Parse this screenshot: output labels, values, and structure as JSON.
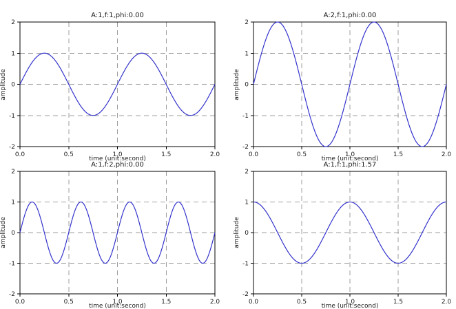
{
  "figure": {
    "background": "#ffffff",
    "line_color": "#3333cc",
    "grid_color": "#9e9e9e",
    "axis_color": "#000000",
    "text_color": "#1a1a1a"
  },
  "chart_data": [
    {
      "type": "line",
      "title": "A:1,f:1,phi:0.00",
      "xlabel": "time (unit:second)",
      "ylabel": "amplitude",
      "xlim": [
        0,
        2
      ],
      "ylim": [
        -2,
        2
      ],
      "xticks": [
        0.0,
        0.5,
        1.0,
        1.5,
        2.0
      ],
      "xtick_labels": [
        "0.0",
        "0.5",
        "1.0",
        "1.5",
        "2.0"
      ],
      "yticks": [
        -2,
        -1,
        0,
        1,
        2
      ],
      "ytick_labels": [
        "-2",
        "-1",
        "0",
        "1",
        "2"
      ],
      "grid": true,
      "legend": "none",
      "series": [
        {
          "name": "sine-wave",
          "waveform": "sine",
          "amplitude": 1,
          "frequency_hz": 1,
          "phase_rad": 0.0
        }
      ]
    },
    {
      "type": "line",
      "title": "A:2,f:1,phi:0.00",
      "xlabel": "time (unit:second)",
      "ylabel": "amplitude",
      "xlim": [
        0,
        2
      ],
      "ylim": [
        -2,
        2
      ],
      "xticks": [
        0.0,
        0.5,
        1.0,
        1.5,
        2.0
      ],
      "xtick_labels": [
        "0.0",
        "0.5",
        "1.0",
        "1.5",
        "2.0"
      ],
      "yticks": [
        -2,
        -1,
        0,
        1,
        2
      ],
      "ytick_labels": [
        "-2",
        "-1",
        "0",
        "1",
        "2"
      ],
      "grid": true,
      "legend": "none",
      "series": [
        {
          "name": "sine-wave",
          "waveform": "sine",
          "amplitude": 2,
          "frequency_hz": 1,
          "phase_rad": 0.0
        }
      ]
    },
    {
      "type": "line",
      "title": "A:1,f:2,phi:0.00",
      "xlabel": "time (unit:second)",
      "ylabel": "amplitude",
      "xlim": [
        0,
        2
      ],
      "ylim": [
        -2,
        2
      ],
      "xticks": [
        0.0,
        0.5,
        1.0,
        1.5,
        2.0
      ],
      "xtick_labels": [
        "0.0",
        "0.5",
        "1.0",
        "1.5",
        "2.0"
      ],
      "yticks": [
        -2,
        -1,
        0,
        1,
        2
      ],
      "ytick_labels": [
        "-2",
        "-1",
        "0",
        "1",
        "2"
      ],
      "grid": true,
      "legend": "none",
      "series": [
        {
          "name": "sine-wave",
          "waveform": "sine",
          "amplitude": 1,
          "frequency_hz": 2,
          "phase_rad": 0.0
        }
      ]
    },
    {
      "type": "line",
      "title": "A:1,f:1,phi:1.57",
      "xlabel": "time (unit:second)",
      "ylabel": "amplitude",
      "xlim": [
        0,
        2
      ],
      "ylim": [
        -2,
        2
      ],
      "xticks": [
        0.0,
        0.5,
        1.0,
        1.5,
        2.0
      ],
      "xtick_labels": [
        "0.0",
        "0.5",
        "1.0",
        "1.5",
        "2.0"
      ],
      "yticks": [
        -2,
        -1,
        0,
        1,
        2
      ],
      "ytick_labels": [
        "-2",
        "-1",
        "0",
        "1",
        "2"
      ],
      "grid": true,
      "legend": "none",
      "series": [
        {
          "name": "sine-wave",
          "waveform": "sine",
          "amplitude": 1,
          "frequency_hz": 1,
          "phase_rad": 1.57
        }
      ]
    }
  ]
}
